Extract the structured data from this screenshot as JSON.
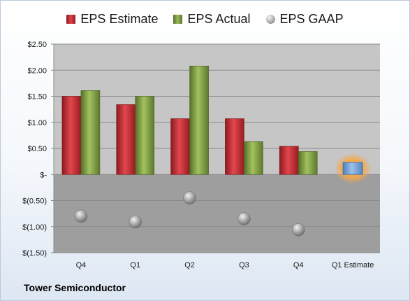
{
  "company": "Tower Semiconductor",
  "colors": {
    "estimate": "#c0272d",
    "actual": "#7b9a3c",
    "gaap": "#a8a8a8",
    "forecast": "#6f9bd1",
    "forecast_glow": "#f5a84a"
  },
  "chart_data": {
    "type": "bar",
    "categories": [
      "Q4",
      "Q1",
      "Q2",
      "Q3",
      "Q4",
      "Q1 Estimate"
    ],
    "ylim": [
      -1.5,
      2.5
    ],
    "yticks": [
      2.5,
      2.0,
      1.5,
      1.0,
      0.5,
      0,
      -0.5,
      -1.0,
      -1.5
    ],
    "ytick_labels": [
      "$2.50",
      "$2.00",
      "$1.50",
      "$1.00",
      "$0.50",
      "$-",
      "$(0.50)",
      "$(1.00)",
      "$(1.50)"
    ],
    "grid": true,
    "legend_position": "top",
    "series": [
      {
        "name": "EPS Estimate",
        "marker": "bar",
        "values": [
          1.5,
          1.34,
          1.07,
          1.07,
          0.54,
          null
        ]
      },
      {
        "name": "EPS Actual",
        "marker": "bar",
        "values": [
          1.61,
          1.5,
          2.08,
          0.63,
          0.44,
          null
        ]
      },
      {
        "name": "EPS GAAP",
        "marker": "ball",
        "values": [
          -0.8,
          -0.91,
          -0.45,
          -0.85,
          -1.06,
          null
        ]
      }
    ],
    "forecast": {
      "category": "Q1 Estimate",
      "value": 0.23
    }
  }
}
